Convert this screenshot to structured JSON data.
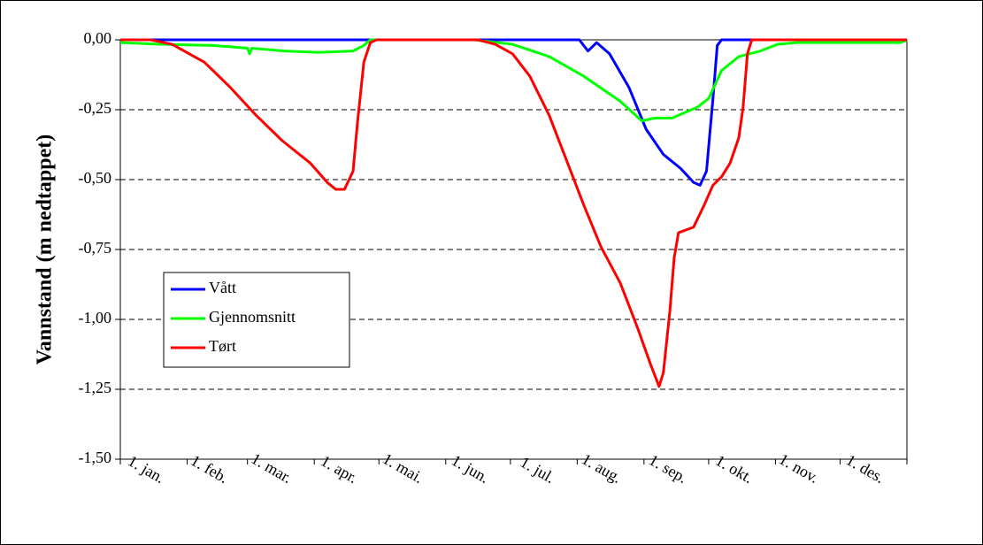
{
  "chart_data": {
    "type": "line",
    "y_label": "Vannstand (m nedtappet)",
    "xlim": [
      0,
      365
    ],
    "xticks": [
      {
        "value": 0,
        "label": "1. jan."
      },
      {
        "value": 31,
        "label": "1. feb."
      },
      {
        "value": 59,
        "label": "1. mar."
      },
      {
        "value": 90,
        "label": "1. apr."
      },
      {
        "value": 120,
        "label": "1. mai."
      },
      {
        "value": 151,
        "label": "1. jun."
      },
      {
        "value": 181,
        "label": "1. jul."
      },
      {
        "value": 212,
        "label": "1. aug."
      },
      {
        "value": 243,
        "label": "1. sep."
      },
      {
        "value": 273,
        "label": "1. okt."
      },
      {
        "value": 304,
        "label": "1. nov."
      },
      {
        "value": 334,
        "label": "1. des."
      }
    ],
    "ylim": [
      -1.5,
      0
    ],
    "yticks": [
      {
        "value": 0,
        "label": "0,00"
      },
      {
        "value": -0.25,
        "label": "-0,25"
      },
      {
        "value": -0.5,
        "label": "-0,50"
      },
      {
        "value": -0.75,
        "label": "-0,75"
      },
      {
        "value": -1,
        "label": "-1,00"
      },
      {
        "value": -1.25,
        "label": "-1,25"
      },
      {
        "value": -1.5,
        "label": "-1,50"
      }
    ],
    "grid": true,
    "legend": "left",
    "series": [
      {
        "name": "Vått",
        "color": "#0000ff",
        "x": [
          0,
          213,
          217,
          221,
          227,
          236,
          244,
          252,
          260,
          266,
          269,
          272,
          275,
          277,
          279,
          365
        ],
        "values": [
          0,
          0,
          -0.04,
          -0.01,
          -0.05,
          -0.17,
          -0.32,
          -0.41,
          -0.46,
          -0.51,
          -0.52,
          -0.47,
          -0.21,
          -0.02,
          0,
          0
        ]
      },
      {
        "name": "Gjennomsnitt",
        "color": "#00ff00",
        "x": [
          0,
          18,
          43,
          59,
          60,
          61,
          76,
          92,
          108,
          113,
          116,
          164,
          182,
          199,
          215,
          232,
          242,
          248,
          256,
          268,
          273,
          279,
          287,
          297,
          305,
          314,
          362,
          365
        ],
        "values": [
          -0.01,
          -0.016,
          -0.02,
          -0.03,
          -0.05,
          -0.03,
          -0.04,
          -0.045,
          -0.04,
          -0.02,
          0,
          0,
          -0.016,
          -0.06,
          -0.13,
          -0.22,
          -0.29,
          -0.28,
          -0.28,
          -0.24,
          -0.21,
          -0.11,
          -0.06,
          -0.04,
          -0.016,
          -0.01,
          -0.01,
          0
        ]
      },
      {
        "name": "Tørt",
        "color": "#ff0000",
        "x": [
          0,
          14,
          24,
          39,
          51,
          63,
          75,
          88,
          96,
          100,
          104,
          108,
          110,
          113,
          116,
          119,
          166,
          174,
          182,
          190,
          199,
          207,
          215,
          223,
          232,
          240,
          246,
          250,
          252,
          255,
          257,
          259,
          266,
          271,
          275,
          279,
          283,
          287,
          289,
          291,
          293,
          365
        ],
        "values": [
          0,
          0,
          -0.016,
          -0.08,
          -0.17,
          -0.27,
          -0.36,
          -0.44,
          -0.51,
          -0.535,
          -0.535,
          -0.47,
          -0.3,
          -0.08,
          -0.01,
          0,
          0,
          -0.016,
          -0.05,
          -0.13,
          -0.27,
          -0.43,
          -0.59,
          -0.74,
          -0.87,
          -1.03,
          -1.16,
          -1.24,
          -1.19,
          -0.97,
          -0.78,
          -0.69,
          -0.67,
          -0.59,
          -0.52,
          -0.49,
          -0.44,
          -0.35,
          -0.24,
          -0.05,
          0,
          0
        ]
      }
    ]
  }
}
